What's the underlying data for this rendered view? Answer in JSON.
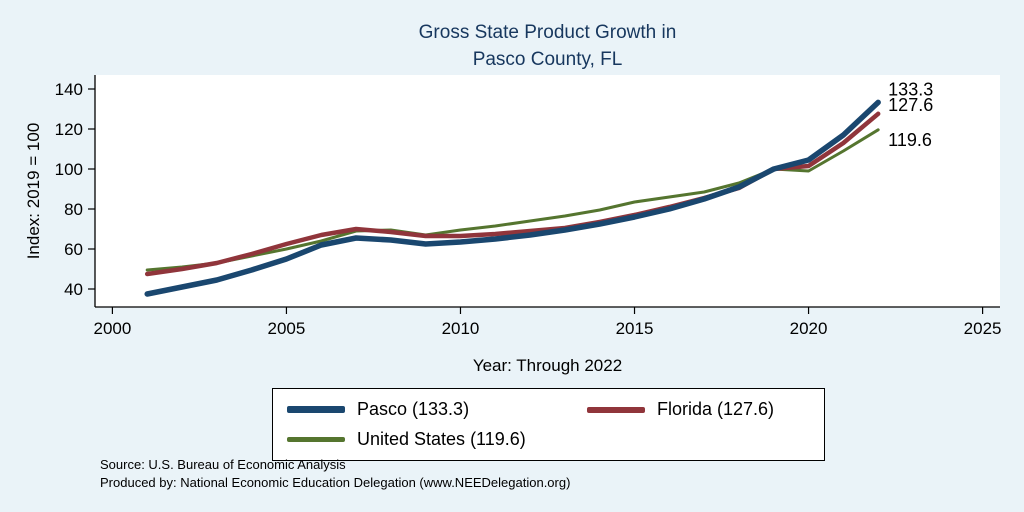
{
  "page": {
    "background": "#eaf3f8",
    "title_color": "#17375e"
  },
  "title": {
    "line1": "Gross State Product Growth in",
    "line2": "Pasco County, FL"
  },
  "axes": {
    "y_label": "Index: 2019 = 100",
    "x_label": "Year: Through 2022"
  },
  "chart_data": {
    "type": "line",
    "title": "Gross State Product Growth in Pasco County, FL",
    "xlabel": "Year: Through 2022",
    "ylabel": "Index: 2019 = 100",
    "xlim": [
      1999.5,
      2025.5
    ],
    "ylim": [
      31,
      147
    ],
    "x_ticks": [
      2000,
      2005,
      2010,
      2015,
      2020,
      2025
    ],
    "y_ticks": [
      40,
      60,
      80,
      100,
      120,
      140
    ],
    "grid": false,
    "legend_position": "bottom",
    "x": [
      2001,
      2002,
      2003,
      2004,
      2005,
      2006,
      2007,
      2008,
      2009,
      2010,
      2011,
      2012,
      2013,
      2014,
      2015,
      2016,
      2017,
      2018,
      2019,
      2020,
      2021,
      2022
    ],
    "series": [
      {
        "name": "Pasco",
        "color": "#1a476f",
        "line_width": 5.5,
        "end_label": "133.3",
        "values": [
          37.5,
          41,
          44.5,
          49.5,
          55,
          62,
          65.5,
          64.5,
          62.5,
          63.5,
          65,
          67,
          69.5,
          72.5,
          76,
          80,
          85,
          91,
          100,
          104.5,
          117,
          133.3
        ]
      },
      {
        "name": "Florida",
        "color": "#90353b",
        "line_width": 4.5,
        "end_label": "127.6",
        "values": [
          47.5,
          50,
          53,
          57.5,
          62.5,
          67,
          70,
          68.5,
          66.5,
          66.5,
          67.5,
          69,
          70.5,
          73.5,
          77,
          81,
          85.5,
          90.5,
          100,
          101.5,
          113,
          127.6
        ]
      },
      {
        "name": "United States",
        "color": "#55752f",
        "line_width": 3,
        "end_label": "119.6",
        "values": [
          49.5,
          51,
          53,
          56.5,
          60,
          64,
          69,
          69.5,
          67,
          69.5,
          71.5,
          74,
          76.5,
          79.5,
          83.5,
          86,
          88.5,
          93,
          100,
          99,
          109,
          119.6
        ]
      }
    ]
  },
  "legend": {
    "items": [
      {
        "label": "Pasco  (133.3)"
      },
      {
        "label": "Florida (127.6)"
      },
      {
        "label": "United States (119.6)"
      }
    ]
  },
  "footer": {
    "source": "Source: U.S. Bureau of Economic Analysis",
    "produced": "Produced by: National Economic Education Delegation (www.NEEDelegation.org)"
  }
}
